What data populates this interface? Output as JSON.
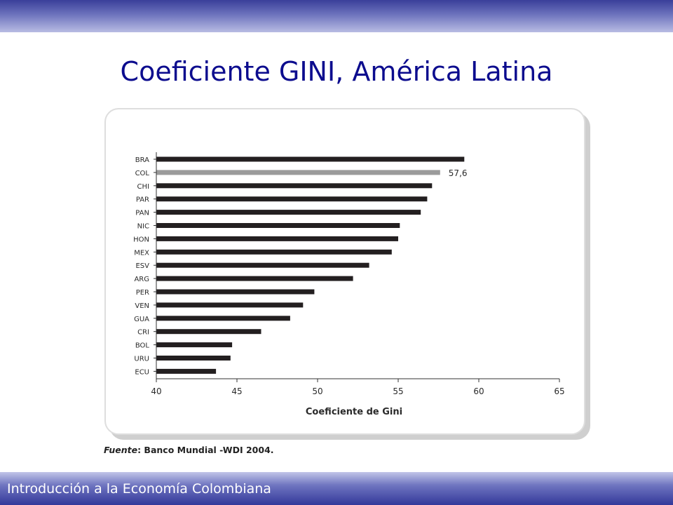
{
  "slide": {
    "title": "Coeficiente GINI, América Latina",
    "footer": "Introducción a la Economía Colombiana",
    "source_label": "Fuente",
    "source_text": ": Banco Mundial -WDI 2004."
  },
  "colors": {
    "title": "#0c0c8e",
    "bar": "#231f20",
    "highlight_bar": "#9b9b9b",
    "band": "#4a4fa8"
  },
  "chart_data": {
    "type": "bar",
    "orientation": "horizontal",
    "categories": [
      "BRA",
      "COL",
      "CHI",
      "PAR",
      "PAN",
      "NIC",
      "HON",
      "MEX",
      "ESV",
      "ARG",
      "PER",
      "VEN",
      "GUA",
      "CRI",
      "BOL",
      "URU",
      "ECU"
    ],
    "values": [
      59.1,
      57.6,
      57.1,
      56.8,
      56.4,
      55.1,
      55.0,
      54.6,
      53.2,
      52.2,
      49.8,
      49.1,
      48.3,
      46.5,
      44.7,
      44.6,
      43.7
    ],
    "highlight": "COL",
    "data_labels": [
      {
        "category": "COL",
        "text": "57,6"
      }
    ],
    "xlabel": "Coeficiente de Gini",
    "ylabel": "",
    "xlim": [
      40,
      65
    ],
    "x_ticks": [
      40,
      45,
      50,
      55,
      60,
      65
    ],
    "grid": false
  }
}
